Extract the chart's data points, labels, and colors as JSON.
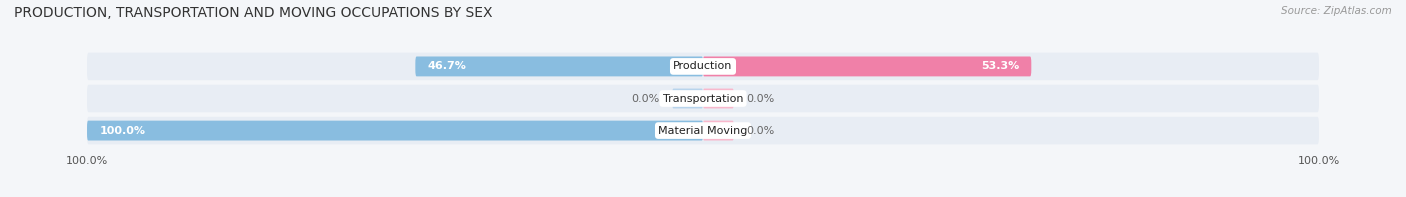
{
  "title": "PRODUCTION, TRANSPORTATION AND MOVING OCCUPATIONS BY SEX",
  "source": "Source: ZipAtlas.com",
  "categories": [
    "Material Moving",
    "Transportation",
    "Production"
  ],
  "male_values": [
    100.0,
    0.0,
    46.7
  ],
  "female_values": [
    0.0,
    0.0,
    53.3
  ],
  "male_color": "#89bde0",
  "female_color": "#f080a8",
  "male_color_light": "#b8d4ec",
  "female_color_light": "#f8b8cc",
  "bar_height": 0.62,
  "background_color": "#f4f6f9",
  "row_bg_color": "#e8edf4",
  "title_fontsize": 10,
  "source_fontsize": 7.5,
  "tick_fontsize": 8,
  "bar_label_fontsize": 8,
  "category_fontsize": 8,
  "x_tick_labels": [
    "100.0%",
    "100.0%"
  ],
  "legend_fontsize": 8
}
